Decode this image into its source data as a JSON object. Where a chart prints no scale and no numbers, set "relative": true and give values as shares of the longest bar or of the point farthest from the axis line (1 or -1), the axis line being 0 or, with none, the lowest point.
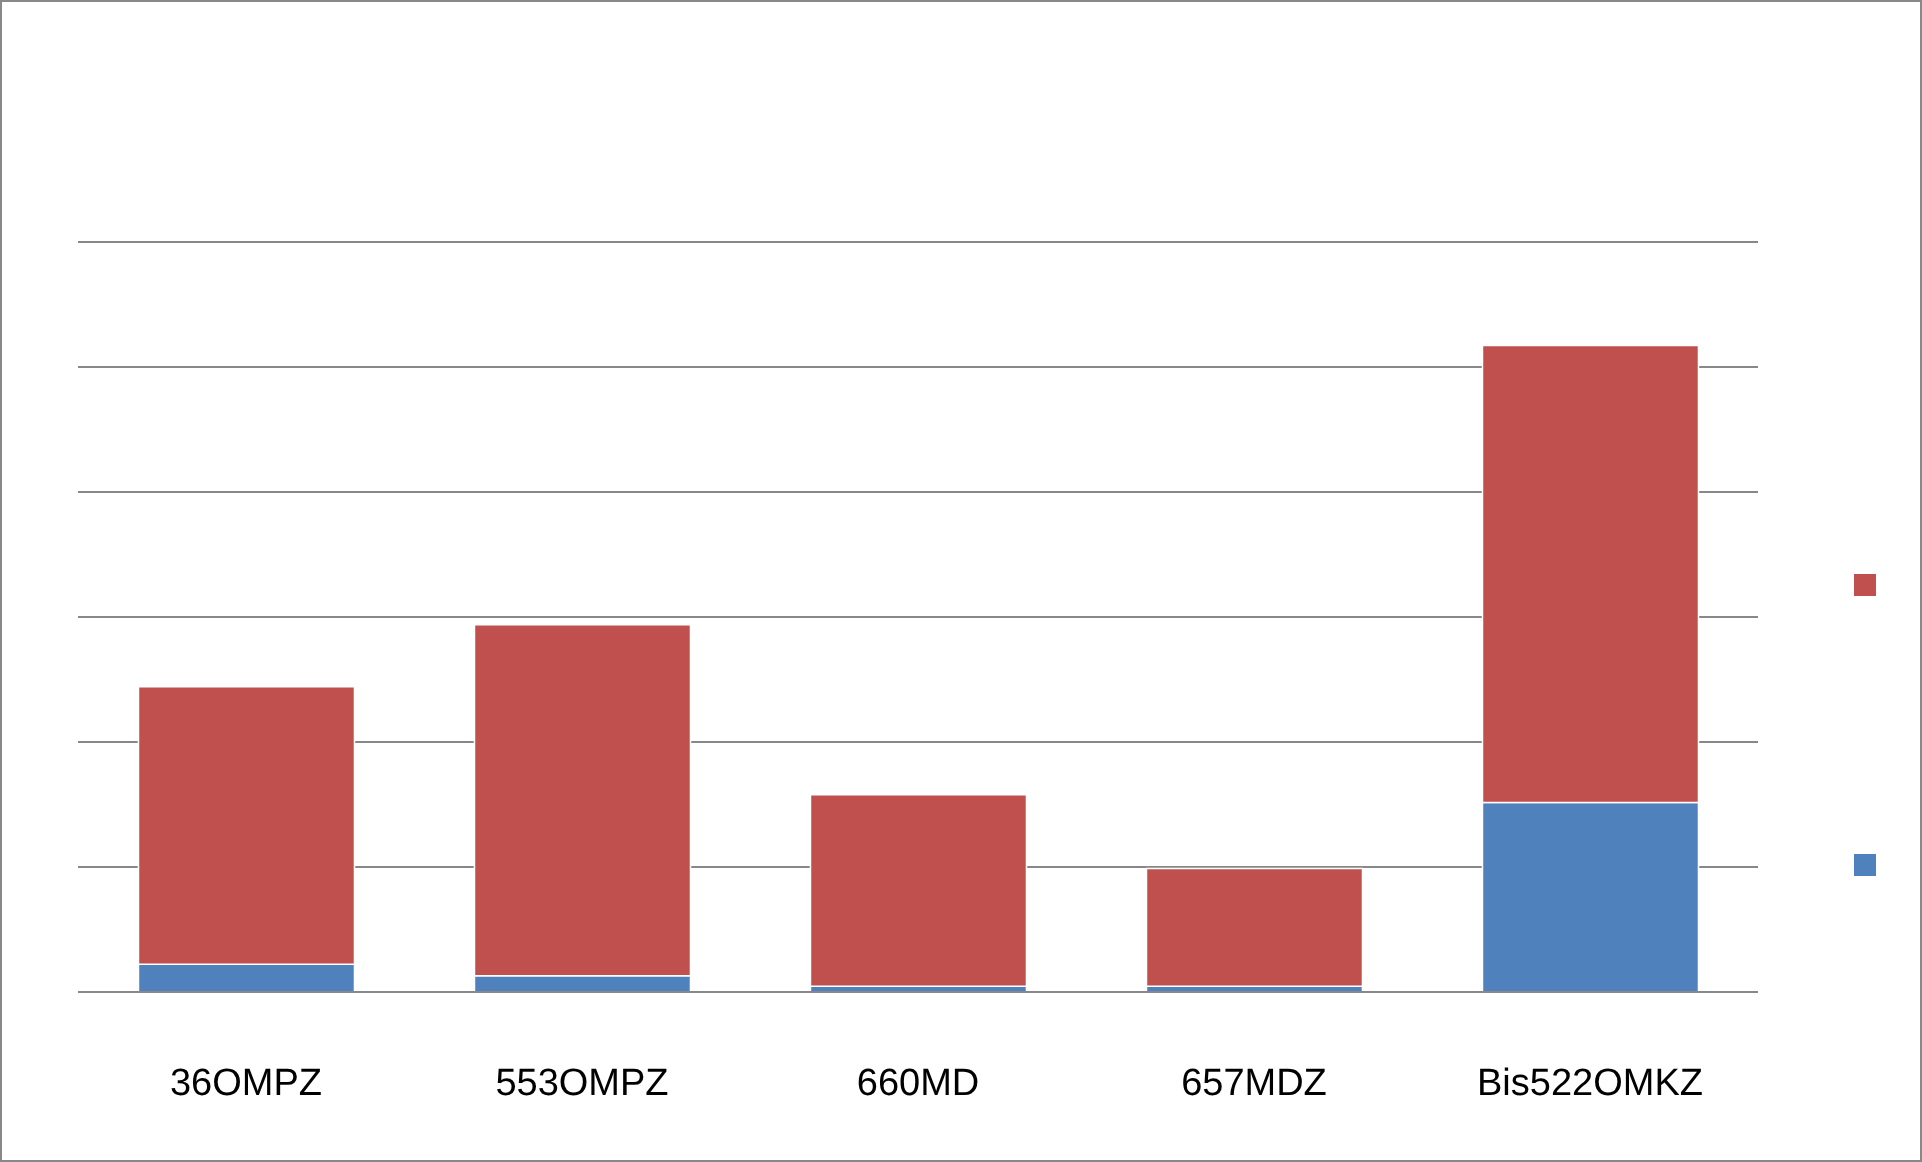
{
  "chart_data": {
    "type": "bar",
    "stacked": true,
    "relative": true,
    "grid": "y",
    "categories": [
      "36OMPZ",
      "553OMPZ",
      "660MD",
      "657MDZ",
      "Bis522OMKZ"
    ],
    "series": [
      {
        "color": "#4f81bd",
        "values": [
          0.043,
          0.025,
          0.009,
          0.009,
          0.293
        ]
      },
      {
        "color": "#c0504d",
        "values": [
          0.429,
          0.543,
          0.296,
          0.182,
          0.707
        ]
      }
    ]
  }
}
